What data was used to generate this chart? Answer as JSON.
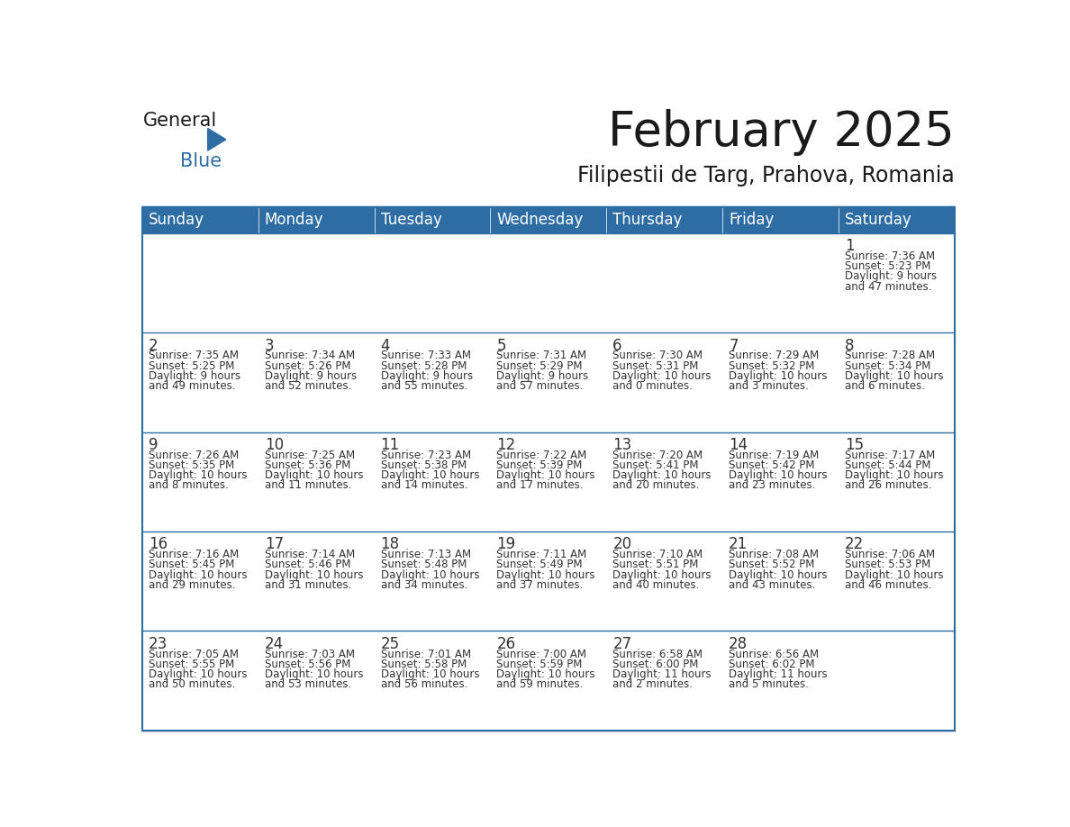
{
  "title": "February 2025",
  "subtitle": "Filipestii de Targ, Prahova, Romania",
  "header_color": "#2E6DA4",
  "header_text_color": "#FFFFFF",
  "cell_bg_color": "#FFFFFF",
  "row_sep_color": "#2E6DA4",
  "text_color": "#333333",
  "days_of_week": [
    "Sunday",
    "Monday",
    "Tuesday",
    "Wednesday",
    "Thursday",
    "Friday",
    "Saturday"
  ],
  "weeks": [
    [
      {
        "day": "",
        "info": ""
      },
      {
        "day": "",
        "info": ""
      },
      {
        "day": "",
        "info": ""
      },
      {
        "day": "",
        "info": ""
      },
      {
        "day": "",
        "info": ""
      },
      {
        "day": "",
        "info": ""
      },
      {
        "day": "1",
        "info": "Sunrise: 7:36 AM\nSunset: 5:23 PM\nDaylight: 9 hours\nand 47 minutes."
      }
    ],
    [
      {
        "day": "2",
        "info": "Sunrise: 7:35 AM\nSunset: 5:25 PM\nDaylight: 9 hours\nand 49 minutes."
      },
      {
        "day": "3",
        "info": "Sunrise: 7:34 AM\nSunset: 5:26 PM\nDaylight: 9 hours\nand 52 minutes."
      },
      {
        "day": "4",
        "info": "Sunrise: 7:33 AM\nSunset: 5:28 PM\nDaylight: 9 hours\nand 55 minutes."
      },
      {
        "day": "5",
        "info": "Sunrise: 7:31 AM\nSunset: 5:29 PM\nDaylight: 9 hours\nand 57 minutes."
      },
      {
        "day": "6",
        "info": "Sunrise: 7:30 AM\nSunset: 5:31 PM\nDaylight: 10 hours\nand 0 minutes."
      },
      {
        "day": "7",
        "info": "Sunrise: 7:29 AM\nSunset: 5:32 PM\nDaylight: 10 hours\nand 3 minutes."
      },
      {
        "day": "8",
        "info": "Sunrise: 7:28 AM\nSunset: 5:34 PM\nDaylight: 10 hours\nand 6 minutes."
      }
    ],
    [
      {
        "day": "9",
        "info": "Sunrise: 7:26 AM\nSunset: 5:35 PM\nDaylight: 10 hours\nand 8 minutes."
      },
      {
        "day": "10",
        "info": "Sunrise: 7:25 AM\nSunset: 5:36 PM\nDaylight: 10 hours\nand 11 minutes."
      },
      {
        "day": "11",
        "info": "Sunrise: 7:23 AM\nSunset: 5:38 PM\nDaylight: 10 hours\nand 14 minutes."
      },
      {
        "day": "12",
        "info": "Sunrise: 7:22 AM\nSunset: 5:39 PM\nDaylight: 10 hours\nand 17 minutes."
      },
      {
        "day": "13",
        "info": "Sunrise: 7:20 AM\nSunset: 5:41 PM\nDaylight: 10 hours\nand 20 minutes."
      },
      {
        "day": "14",
        "info": "Sunrise: 7:19 AM\nSunset: 5:42 PM\nDaylight: 10 hours\nand 23 minutes."
      },
      {
        "day": "15",
        "info": "Sunrise: 7:17 AM\nSunset: 5:44 PM\nDaylight: 10 hours\nand 26 minutes."
      }
    ],
    [
      {
        "day": "16",
        "info": "Sunrise: 7:16 AM\nSunset: 5:45 PM\nDaylight: 10 hours\nand 29 minutes."
      },
      {
        "day": "17",
        "info": "Sunrise: 7:14 AM\nSunset: 5:46 PM\nDaylight: 10 hours\nand 31 minutes."
      },
      {
        "day": "18",
        "info": "Sunrise: 7:13 AM\nSunset: 5:48 PM\nDaylight: 10 hours\nand 34 minutes."
      },
      {
        "day": "19",
        "info": "Sunrise: 7:11 AM\nSunset: 5:49 PM\nDaylight: 10 hours\nand 37 minutes."
      },
      {
        "day": "20",
        "info": "Sunrise: 7:10 AM\nSunset: 5:51 PM\nDaylight: 10 hours\nand 40 minutes."
      },
      {
        "day": "21",
        "info": "Sunrise: 7:08 AM\nSunset: 5:52 PM\nDaylight: 10 hours\nand 43 minutes."
      },
      {
        "day": "22",
        "info": "Sunrise: 7:06 AM\nSunset: 5:53 PM\nDaylight: 10 hours\nand 46 minutes."
      }
    ],
    [
      {
        "day": "23",
        "info": "Sunrise: 7:05 AM\nSunset: 5:55 PM\nDaylight: 10 hours\nand 50 minutes."
      },
      {
        "day": "24",
        "info": "Sunrise: 7:03 AM\nSunset: 5:56 PM\nDaylight: 10 hours\nand 53 minutes."
      },
      {
        "day": "25",
        "info": "Sunrise: 7:01 AM\nSunset: 5:58 PM\nDaylight: 10 hours\nand 56 minutes."
      },
      {
        "day": "26",
        "info": "Sunrise: 7:00 AM\nSunset: 5:59 PM\nDaylight: 10 hours\nand 59 minutes."
      },
      {
        "day": "27",
        "info": "Sunrise: 6:58 AM\nSunset: 6:00 PM\nDaylight: 11 hours\nand 2 minutes."
      },
      {
        "day": "28",
        "info": "Sunrise: 6:56 AM\nSunset: 6:02 PM\nDaylight: 11 hours\nand 5 minutes."
      },
      {
        "day": "",
        "info": ""
      }
    ]
  ],
  "title_fontsize": 38,
  "subtitle_fontsize": 17,
  "header_fontsize": 12,
  "day_num_fontsize": 12,
  "cell_text_fontsize": 8.5,
  "logo_general_fontsize": 15,
  "logo_blue_fontsize": 15
}
